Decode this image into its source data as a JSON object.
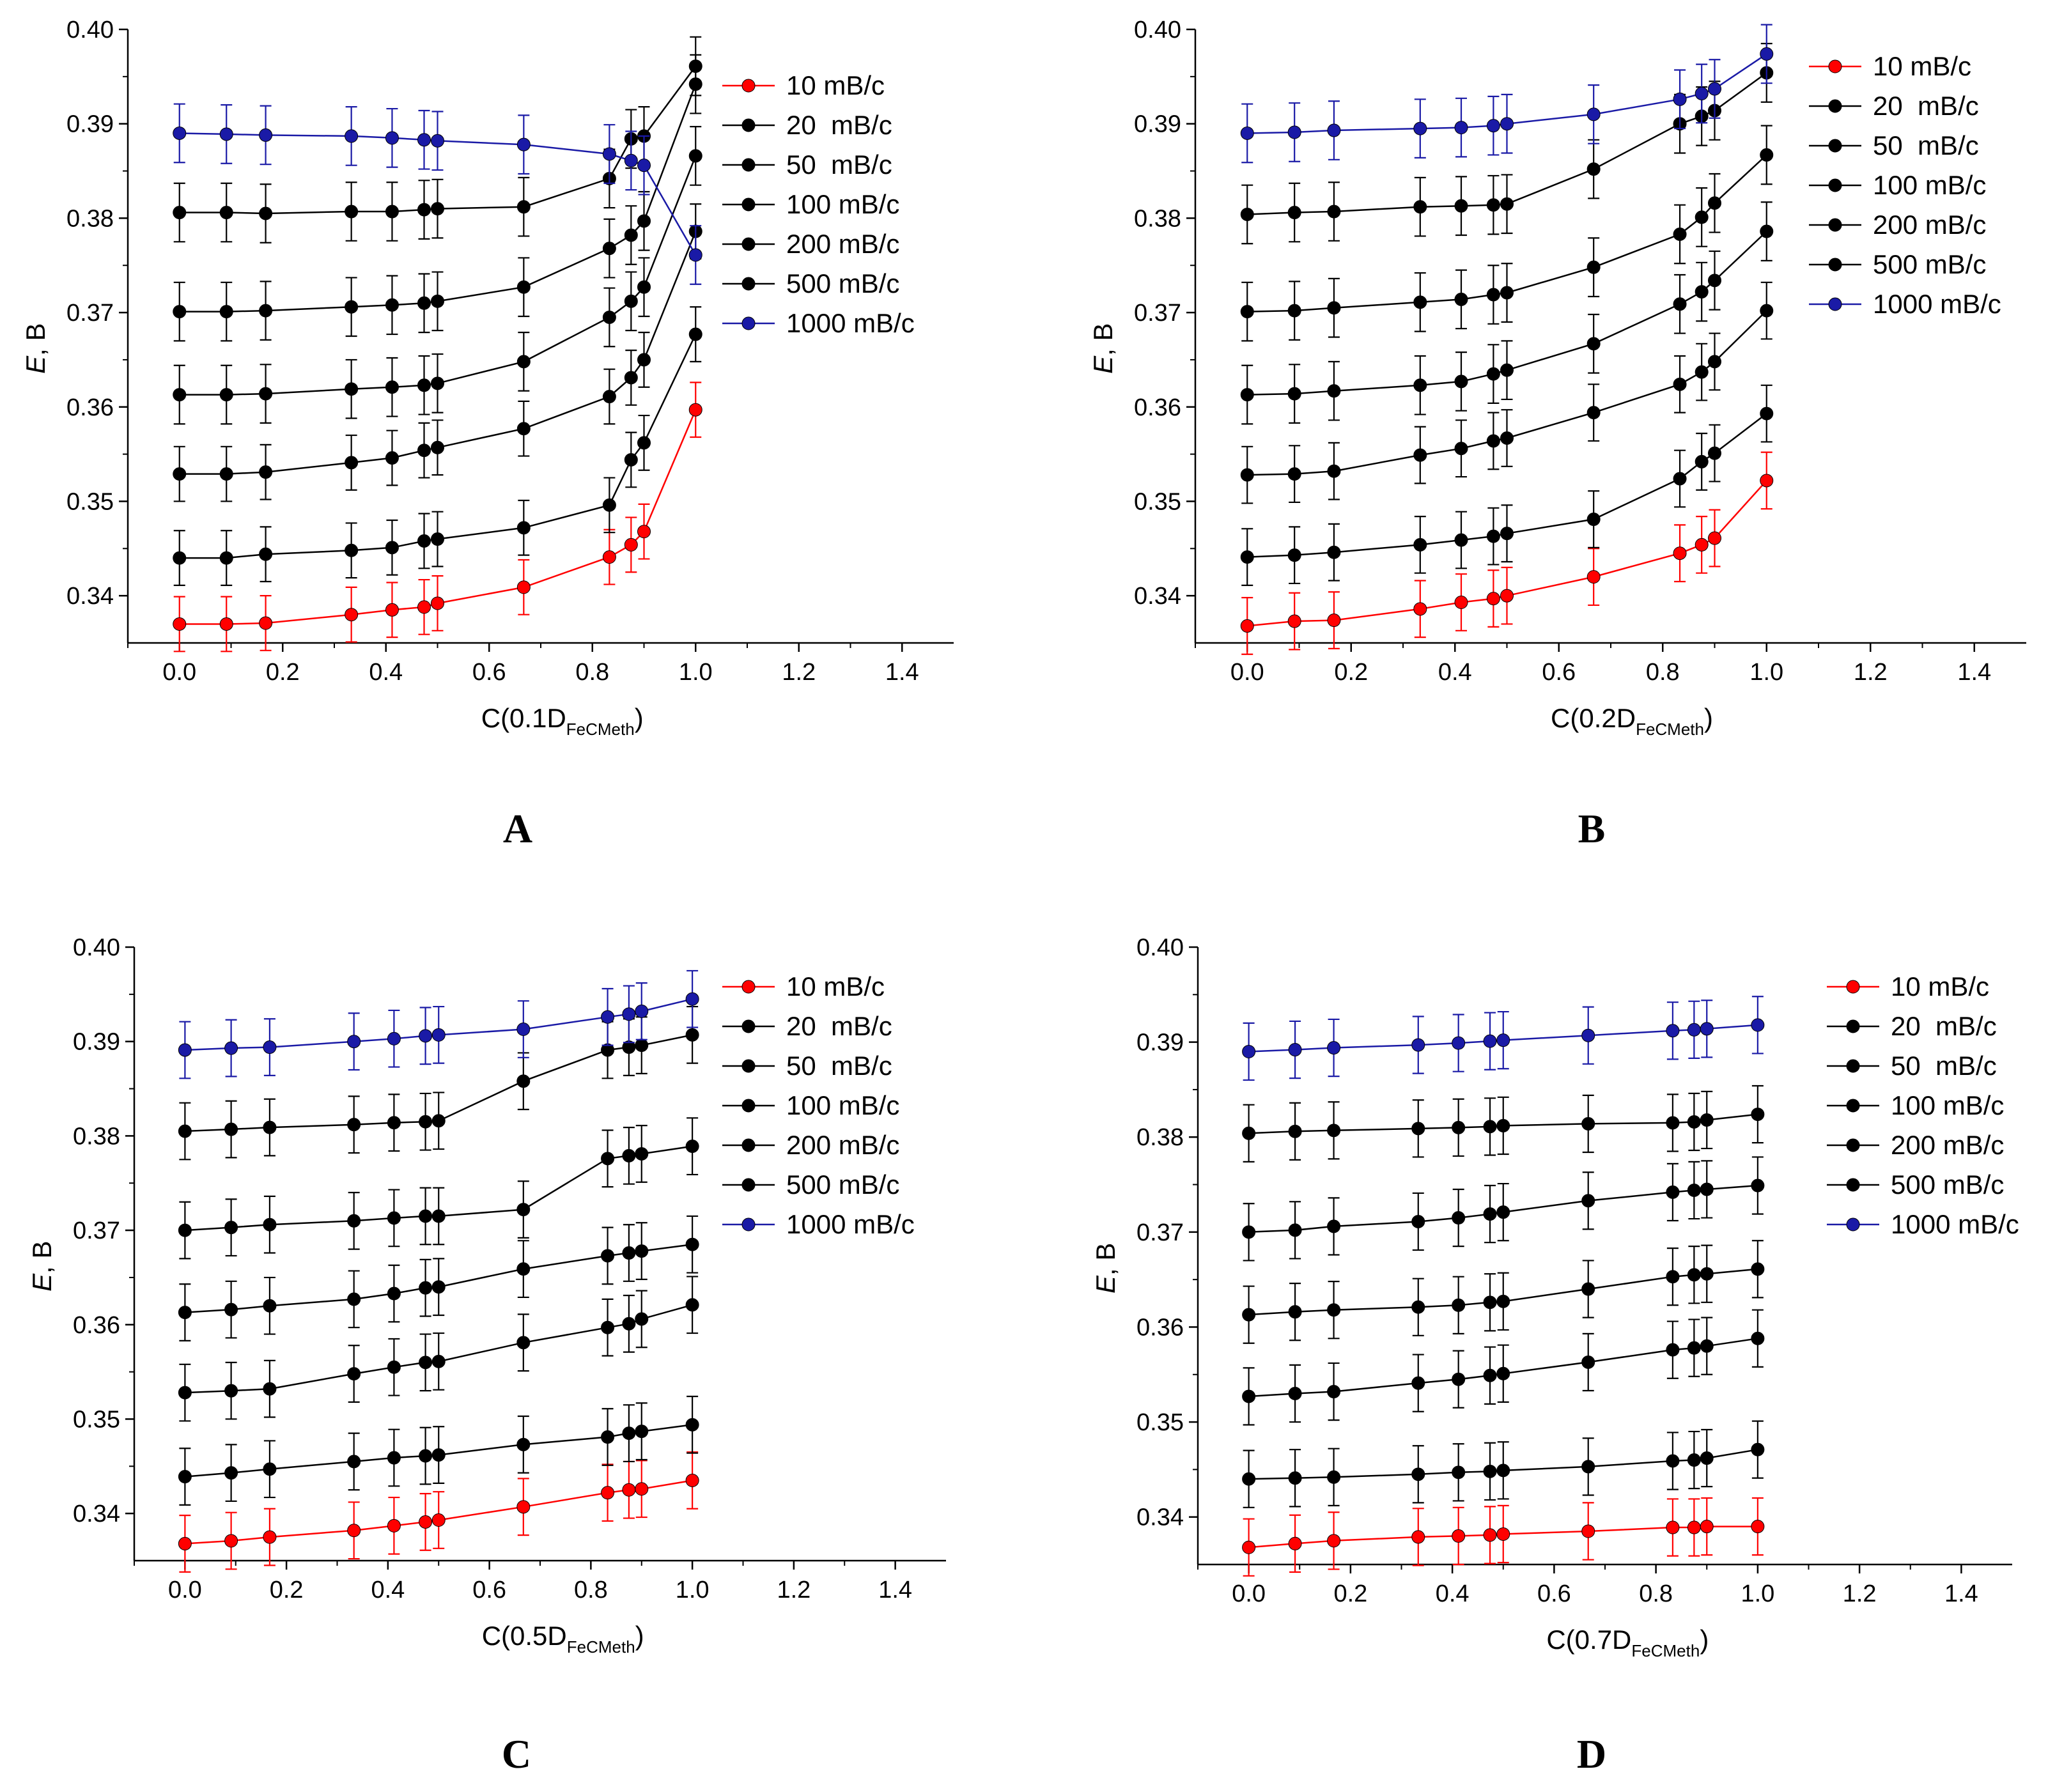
{
  "chart_data": [
    {
      "type": "line",
      "panel_label": "A",
      "xlabel_prefix": "C(0.1D",
      "xlabel_sub": "FeCMeth",
      "xlabel_suffix": ")",
      "ylabel_italic": "E",
      "ylabel_rest": ", B",
      "xlim": [
        -0.1,
        1.5
      ],
      "ylim": [
        0.335,
        0.4
      ],
      "xticks": [
        "0.0",
        "0.2",
        "0.4",
        "0.6",
        "0.8",
        "1.0",
        "1.2",
        "1.4"
      ],
      "yticks": [
        "0.34",
        "0.35",
        "0.36",
        "0.37",
        "0.38",
        "0.39",
        "0.40"
      ],
      "legend_position": "top-right",
      "x": [
        0,
        0.091,
        0.167,
        0.333,
        0.412,
        0.474,
        0.5,
        0.667,
        0.833,
        0.875,
        0.9,
        1.0
      ],
      "series": [
        {
          "name": "10 mB/c",
          "color": "#ff0000",
          "values": [
            0.337,
            0.337,
            0.3371,
            0.338,
            0.3385,
            0.3388,
            0.3392,
            0.3409,
            0.3441,
            0.3454,
            0.3468,
            0.3597
          ],
          "error": 0.0029
        },
        {
          "name": "20  mB/c",
          "color": "#000000",
          "values": [
            0.344,
            0.344,
            0.3444,
            0.3448,
            0.3451,
            0.3458,
            0.346,
            0.3472,
            0.3496,
            0.3544,
            0.3562,
            0.3677
          ],
          "error": 0.0029
        },
        {
          "name": "50  mB/c",
          "color": "#000000",
          "values": [
            0.3529,
            0.3529,
            0.3531,
            0.3541,
            0.3546,
            0.3554,
            0.3557,
            0.3577,
            0.3611,
            0.3631,
            0.365,
            0.3786
          ],
          "error": 0.0029
        },
        {
          "name": "100 mB/c",
          "color": "#000000",
          "values": [
            0.3613,
            0.3613,
            0.3614,
            0.3619,
            0.3621,
            0.3623,
            0.3625,
            0.3648,
            0.3695,
            0.3712,
            0.3727,
            0.3866
          ],
          "error": 0.0031
        },
        {
          "name": "200 mB/c",
          "color": "#000000",
          "values": [
            0.3701,
            0.3701,
            0.3702,
            0.3706,
            0.3708,
            0.371,
            0.3712,
            0.3727,
            0.3768,
            0.3782,
            0.3797,
            0.3942
          ],
          "error": 0.0031
        },
        {
          "name": "500 mB/c",
          "color": "#000000",
          "values": [
            0.3806,
            0.3806,
            0.3805,
            0.3807,
            0.3807,
            0.3809,
            0.381,
            0.3812,
            0.3842,
            0.3884,
            0.3887,
            0.3961
          ],
          "error": 0.0031
        },
        {
          "name": "1000 mB/c",
          "color": "#1a1aa6",
          "values": [
            0.389,
            0.3889,
            0.3888,
            0.3887,
            0.3885,
            0.3883,
            0.3882,
            0.3878,
            0.3868,
            0.3861,
            0.3856,
            0.3761
          ],
          "error": 0.0031
        }
      ]
    },
    {
      "type": "line",
      "panel_label": "B",
      "xlabel_prefix": "C(0.2D",
      "xlabel_sub": "FeCMeth",
      "xlabel_suffix": ")",
      "ylabel_italic": "E",
      "ylabel_rest": ", B",
      "xlim": [
        -0.1,
        1.5
      ],
      "ylim": [
        0.335,
        0.4
      ],
      "xticks": [
        "0.0",
        "0.2",
        "0.4",
        "0.6",
        "0.8",
        "1.0",
        "1.2",
        "1.4"
      ],
      "yticks": [
        "0.34",
        "0.35",
        "0.36",
        "0.37",
        "0.38",
        "0.39",
        "0.40"
      ],
      "legend_position": "top-right",
      "x": [
        0,
        0.091,
        0.167,
        0.333,
        0.412,
        0.474,
        0.5,
        0.667,
        0.833,
        0.875,
        0.9,
        1.0
      ],
      "series": [
        {
          "name": "10 mB/c",
          "color": "#ff0000",
          "values": [
            0.3368,
            0.3373,
            0.3374,
            0.3386,
            0.3393,
            0.3397,
            0.34,
            0.342,
            0.3445,
            0.3454,
            0.3461,
            0.3522
          ],
          "error": 0.003
        },
        {
          "name": "20  mB/c",
          "color": "#000000",
          "values": [
            0.3441,
            0.3443,
            0.3446,
            0.3454,
            0.3459,
            0.3463,
            0.3466,
            0.3481,
            0.3524,
            0.3542,
            0.3551,
            0.3593
          ],
          "error": 0.003
        },
        {
          "name": "50  mB/c",
          "color": "#000000",
          "values": [
            0.3528,
            0.3529,
            0.3532,
            0.3549,
            0.3556,
            0.3564,
            0.3567,
            0.3594,
            0.3624,
            0.3637,
            0.3648,
            0.3702
          ],
          "error": 0.003
        },
        {
          "name": "100 mB/c",
          "color": "#000000",
          "values": [
            0.3613,
            0.3614,
            0.3617,
            0.3623,
            0.3627,
            0.3635,
            0.3639,
            0.3667,
            0.3709,
            0.3722,
            0.3734,
            0.3786
          ],
          "error": 0.0031
        },
        {
          "name": "200 mB/c",
          "color": "#000000",
          "values": [
            0.3701,
            0.3702,
            0.3705,
            0.3711,
            0.3714,
            0.3719,
            0.3721,
            0.3748,
            0.3783,
            0.3801,
            0.3816,
            0.3867
          ],
          "error": 0.0031
        },
        {
          "name": "500 mB/c",
          "color": "#000000",
          "values": [
            0.3804,
            0.3806,
            0.3807,
            0.3812,
            0.3813,
            0.3814,
            0.3815,
            0.3852,
            0.39,
            0.3908,
            0.3914,
            0.3954
          ],
          "error": 0.0031
        },
        {
          "name": "1000 mB/c",
          "color": "#1a1aa6",
          "values": [
            0.389,
            0.3891,
            0.3893,
            0.3895,
            0.3896,
            0.3898,
            0.39,
            0.391,
            0.3926,
            0.3932,
            0.3937,
            0.3974
          ],
          "error": 0.0031
        }
      ]
    },
    {
      "type": "line",
      "panel_label": "C",
      "xlabel_prefix": "C(0.5D",
      "xlabel_sub": "FeCMeth",
      "xlabel_suffix": ")",
      "ylabel_italic": "E",
      "ylabel_rest": ", B",
      "xlim": [
        -0.1,
        1.5
      ],
      "ylim": [
        0.335,
        0.4
      ],
      "xticks": [
        "0.0",
        "0.2",
        "0.4",
        "0.6",
        "0.8",
        "1.0",
        "1.2",
        "1.4"
      ],
      "yticks": [
        "0.34",
        "0.35",
        "0.36",
        "0.37",
        "0.38",
        "0.39",
        "0.40"
      ],
      "legend_position": "top-right",
      "x": [
        0,
        0.091,
        0.167,
        0.333,
        0.412,
        0.474,
        0.5,
        0.667,
        0.833,
        0.875,
        0.9,
        1.0
      ],
      "series": [
        {
          "name": "10 mB/c",
          "color": "#ff0000",
          "values": [
            0.3368,
            0.3371,
            0.3375,
            0.3382,
            0.3387,
            0.3391,
            0.3393,
            0.3407,
            0.3422,
            0.3425,
            0.3426,
            0.3435
          ],
          "error": 0.003
        },
        {
          "name": "20  mB/c",
          "color": "#000000",
          "values": [
            0.3439,
            0.3443,
            0.3447,
            0.3455,
            0.3459,
            0.3461,
            0.3462,
            0.3473,
            0.3481,
            0.3485,
            0.3487,
            0.3494
          ],
          "error": 0.003
        },
        {
          "name": "50  mB/c",
          "color": "#000000",
          "values": [
            0.3528,
            0.353,
            0.3532,
            0.3548,
            0.3555,
            0.356,
            0.3561,
            0.3581,
            0.3597,
            0.3601,
            0.3606,
            0.3621
          ],
          "error": 0.003
        },
        {
          "name": "100 mB/c",
          "color": "#000000",
          "values": [
            0.3613,
            0.3616,
            0.362,
            0.3627,
            0.3633,
            0.3639,
            0.364,
            0.3659,
            0.3673,
            0.3676,
            0.3678,
            0.3685
          ],
          "error": 0.003
        },
        {
          "name": "200 mB/c",
          "color": "#000000",
          "values": [
            0.37,
            0.3703,
            0.3706,
            0.371,
            0.3713,
            0.3715,
            0.3715,
            0.3722,
            0.3776,
            0.3779,
            0.3781,
            0.3789
          ],
          "error": 0.003
        },
        {
          "name": "500 mB/c",
          "color": "#000000",
          "values": [
            0.3805,
            0.3807,
            0.3809,
            0.3812,
            0.3814,
            0.3815,
            0.3816,
            0.3858,
            0.3891,
            0.3894,
            0.3896,
            0.3907
          ],
          "error": 0.003
        },
        {
          "name": "1000 mB/c",
          "color": "#1a1aa6",
          "values": [
            0.3891,
            0.3893,
            0.3894,
            0.39,
            0.3903,
            0.3906,
            0.3907,
            0.3913,
            0.3926,
            0.3929,
            0.3932,
            0.3945
          ],
          "error": 0.003
        }
      ]
    },
    {
      "type": "line",
      "panel_label": "D",
      "xlabel_prefix": "C(0.7D",
      "xlabel_sub": "FeCMeth",
      "xlabel_suffix": ")",
      "ylabel_italic": "E",
      "ylabel_rest": ", B",
      "xlim": [
        -0.1,
        1.5
      ],
      "ylim": [
        0.335,
        0.4
      ],
      "xticks": [
        "0.0",
        "0.2",
        "0.4",
        "0.6",
        "0.8",
        "1.0",
        "1.2",
        "1.4"
      ],
      "yticks": [
        "0.34",
        "0.35",
        "0.36",
        "0.37",
        "0.38",
        "0.39",
        "0.40"
      ],
      "legend_position": "top-right",
      "x": [
        0,
        0.091,
        0.167,
        0.333,
        0.412,
        0.474,
        0.5,
        0.667,
        0.833,
        0.875,
        0.9,
        1.0
      ],
      "series": [
        {
          "name": "10 mB/c",
          "color": "#ff0000",
          "values": [
            0.3368,
            0.3372,
            0.3375,
            0.3379,
            0.338,
            0.3381,
            0.3382,
            0.3385,
            0.3389,
            0.3389,
            0.339,
            0.339
          ],
          "error": 0.003
        },
        {
          "name": "20  mB/c",
          "color": "#000000",
          "values": [
            0.344,
            0.3441,
            0.3442,
            0.3445,
            0.3447,
            0.3448,
            0.3449,
            0.3453,
            0.3459,
            0.346,
            0.3462,
            0.3471
          ],
          "error": 0.003
        },
        {
          "name": "50  mB/c",
          "color": "#000000",
          "values": [
            0.3527,
            0.353,
            0.3532,
            0.3541,
            0.3545,
            0.3549,
            0.3551,
            0.3563,
            0.3576,
            0.3578,
            0.358,
            0.3588
          ],
          "error": 0.003
        },
        {
          "name": "100 mB/c",
          "color": "#000000",
          "values": [
            0.3613,
            0.3616,
            0.3618,
            0.3621,
            0.3623,
            0.3626,
            0.3627,
            0.364,
            0.3653,
            0.3655,
            0.3656,
            0.3661
          ],
          "error": 0.003
        },
        {
          "name": "200 mB/c",
          "color": "#000000",
          "values": [
            0.37,
            0.3702,
            0.3706,
            0.3711,
            0.3715,
            0.3719,
            0.3721,
            0.3733,
            0.3742,
            0.3744,
            0.3745,
            0.3749
          ],
          "error": 0.003
        },
        {
          "name": "500 mB/c",
          "color": "#000000",
          "values": [
            0.3804,
            0.3806,
            0.3807,
            0.3809,
            0.381,
            0.3811,
            0.3812,
            0.3814,
            0.3815,
            0.3816,
            0.3818,
            0.3824
          ],
          "error": 0.003
        },
        {
          "name": "1000 mB/c",
          "color": "#1a1aa6",
          "values": [
            0.389,
            0.3892,
            0.3894,
            0.3897,
            0.3899,
            0.3901,
            0.3902,
            0.3907,
            0.3912,
            0.3913,
            0.3914,
            0.3918
          ],
          "error": 0.003
        }
      ]
    }
  ]
}
